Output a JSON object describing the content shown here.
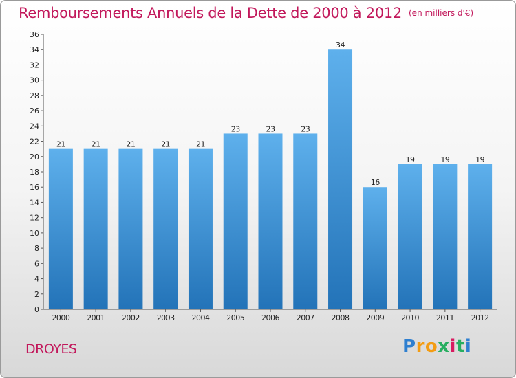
{
  "title": "Remboursements Annuels de la Dette de 2000 à 2012",
  "unit": "(en milliers d'€)",
  "town": "DROYES",
  "logo": {
    "letters": [
      "P",
      "r",
      "o",
      "x",
      "i",
      "t",
      "i"
    ],
    "colors": [
      "#2e7fd0",
      "#f39c12",
      "#f39c12",
      "#27ae60",
      "#d81b60",
      "#27ae60",
      "#2e7fd0"
    ]
  },
  "colors": {
    "title": "#c2185b",
    "bar_top": "#5eb0ec",
    "bar_bottom": "#2373b8"
  },
  "chart_data": {
    "type": "bar",
    "title": "Remboursements Annuels de la Dette de 2000 à 2012",
    "categories": [
      "2000",
      "2001",
      "2002",
      "2003",
      "2004",
      "2005",
      "2006",
      "2007",
      "2008",
      "2009",
      "2010",
      "2011",
      "2012"
    ],
    "values": [
      21,
      21,
      21,
      21,
      21,
      23,
      23,
      23,
      34,
      16,
      19,
      19,
      19
    ],
    "ylim": [
      0,
      36
    ],
    "yticks": [
      0,
      2,
      4,
      6,
      8,
      10,
      12,
      14,
      16,
      18,
      20,
      22,
      24,
      26,
      28,
      30,
      32,
      34,
      36
    ],
    "grid": false,
    "legend": "none"
  }
}
